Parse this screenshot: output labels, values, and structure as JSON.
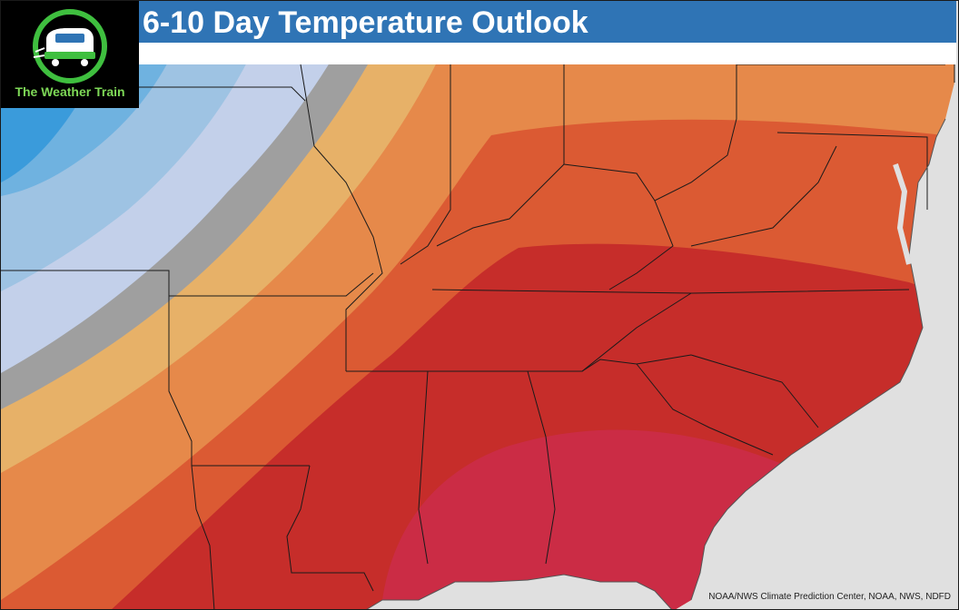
{
  "header": {
    "title": "6-10 Day Temperature Outlook"
  },
  "logo": {
    "name": "The Weather Train",
    "ring_color": "#3fbf3f",
    "text_color": "#7ed957"
  },
  "map": {
    "background_color": "#e0e0e0",
    "ocean_color": "#e0e0e0",
    "border_color": "#1a1a1a",
    "bands": [
      {
        "name": "deep-blue",
        "color": "#3a9bdb"
      },
      {
        "name": "blue",
        "color": "#6fb2e0"
      },
      {
        "name": "light-blue",
        "color": "#9ec3e3"
      },
      {
        "name": "pale-blue",
        "color": "#c3d0ea"
      },
      {
        "name": "near-normal",
        "color": "#9f9f9f"
      },
      {
        "name": "light-orange",
        "color": "#e7b168"
      },
      {
        "name": "orange",
        "color": "#e6894a"
      },
      {
        "name": "dark-orange",
        "color": "#db5a33"
      },
      {
        "name": "red",
        "color": "#c62d2a"
      },
      {
        "name": "crimson",
        "color": "#cb2c45"
      }
    ]
  },
  "footer": {
    "credit": "NOAA/NWS Climate Prediction Center, NOAA, NWS, NDFD"
  }
}
